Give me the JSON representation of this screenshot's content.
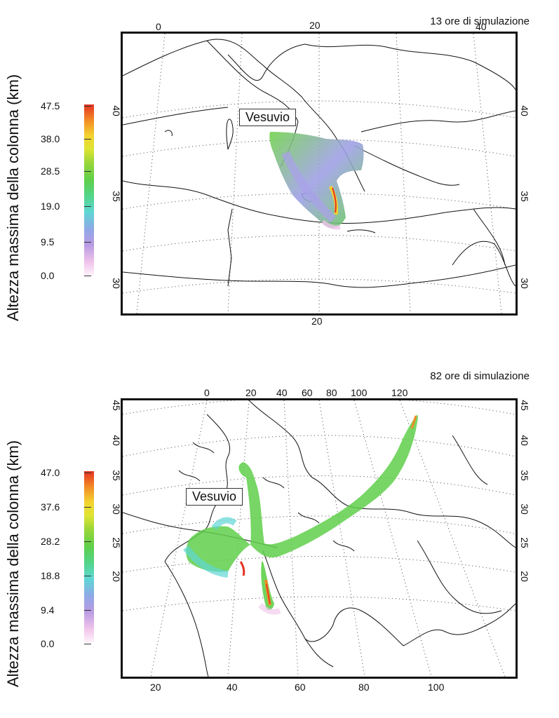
{
  "top": {
    "simulation_label": "13 ore di simulazione",
    "colorbar_title": "Altezza massima della colonna (km)",
    "colorbar_ticks": [
      "47.5",
      "38.0",
      "28.5",
      "19.0",
      "9.5",
      "0.0"
    ],
    "top_lon_labels": [
      "0",
      "20",
      "40"
    ],
    "bottom_lon_labels": [
      "20"
    ],
    "left_lat_labels": [
      "40",
      "35",
      "30"
    ],
    "right_lat_labels": [
      "40",
      "35",
      "30"
    ],
    "volcano_label": "Vesuvio"
  },
  "bottom": {
    "simulation_label": "82 ore di simulazione",
    "colorbar_title": "Altezza massima della colonna (km)",
    "colorbar_ticks": [
      "47.0",
      "37.6",
      "28.2",
      "18.8",
      "9.4",
      "0.0"
    ],
    "top_lon_labels": [
      "0",
      "20",
      "40",
      "60",
      "80",
      "100",
      "120"
    ],
    "bottom_lon_labels": [
      "20",
      "40",
      "60",
      "80",
      "100"
    ],
    "left_lat_labels": [
      "45",
      "40",
      "35",
      "30",
      "25",
      "20"
    ],
    "right_lat_labels": [
      "45",
      "40",
      "35",
      "30",
      "25",
      "20"
    ],
    "volcano_label": "Vesuvio"
  },
  "colors": {
    "scale": [
      "#e53222",
      "#f28a25",
      "#f3d230",
      "#9ad63a",
      "#5fcf4a",
      "#53d58c",
      "#5fd6d4",
      "#8fa8e6",
      "#b99be4",
      "#efc3ea",
      "#fff2fb"
    ]
  }
}
